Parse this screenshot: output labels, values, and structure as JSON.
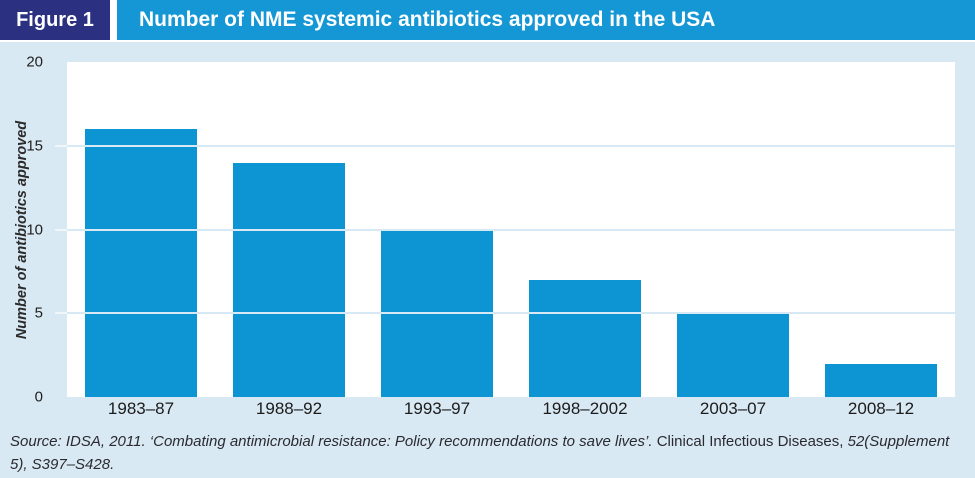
{
  "header": {
    "figure_label": "Figure 1",
    "title": "Number of NME systemic antibiotics approved in the USA"
  },
  "chart_data": {
    "type": "bar",
    "title": "Number of NME systemic antibiotics approved in the USA",
    "categories": [
      "1983–87",
      "1988–92",
      "1993–97",
      "1998–2002",
      "2003–07",
      "2008–12"
    ],
    "values": [
      16,
      14,
      10,
      7,
      5,
      2
    ],
    "xlabel": "",
    "ylabel": "Number of antibiotics approved",
    "ylim": [
      0,
      20
    ],
    "y_ticks": [
      0,
      5,
      10,
      15,
      20
    ],
    "gridline_values": [
      5,
      10,
      15
    ],
    "grid": "horizontal",
    "legend": "none",
    "bar_color": "#0d94d2",
    "plot_background": "#ffffff",
    "panel_background": "#d9e9f3"
  },
  "source": {
    "italic_part_1": "Source: IDSA, 2011. ‘Combating antimicrobial resistance: Policy recommendations to save lives’. ",
    "upright_part": "Clinical Infectious Diseases,",
    "italic_part_2": " 52(Supplement 5), S397–S428."
  },
  "colors": {
    "figure_label_background": "#2b3180",
    "title_bar_background": "#1497d4",
    "header_text": "#ffffff",
    "panel_background": "#d9e9f3",
    "bar_fill": "#0d94d2",
    "gridline": "#d7e9f4",
    "axis_text": "#1f1f1f"
  }
}
